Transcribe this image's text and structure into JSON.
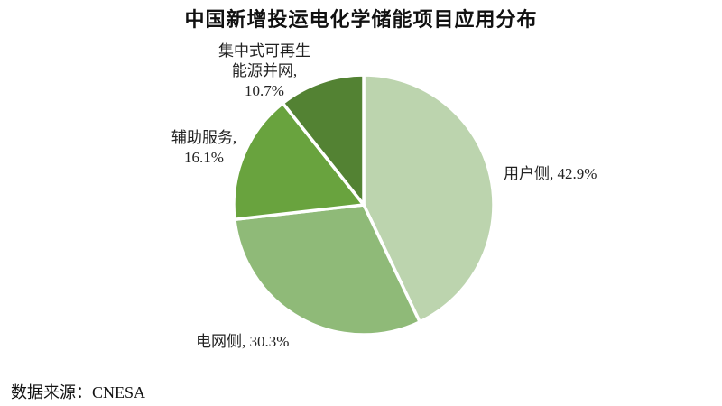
{
  "chart_data": {
    "type": "pie",
    "title": "中国新增投运电化学储能项目应用分布",
    "unit": "percent",
    "start_angle_deg": 0,
    "direction": "clockwise",
    "legend": "none",
    "label_style": "outside callouts with category name and percent",
    "background": "#ffffff",
    "slice_gap_color": "#ffffff",
    "slices": [
      {
        "id": "user-side",
        "label": "用户侧",
        "value": 42.9,
        "color": "#bcd4ae",
        "callout": "用户侧, 42.9%"
      },
      {
        "id": "grid-side",
        "label": "电网侧",
        "value": 30.3,
        "color": "#8fba78",
        "callout": "电网侧, 30.3%"
      },
      {
        "id": "ancillary-services",
        "label": "辅助服务",
        "value": 16.1,
        "color": "#69a33e",
        "callout": "辅助服务,\n16.1%"
      },
      {
        "id": "centralized-renewable",
        "label": "集中式可再生能源并网",
        "value": 10.7,
        "color": "#538233",
        "callout": "集中式可再生\n能源并网,\n10.7%"
      }
    ],
    "source": "数据来源：CNESA"
  }
}
